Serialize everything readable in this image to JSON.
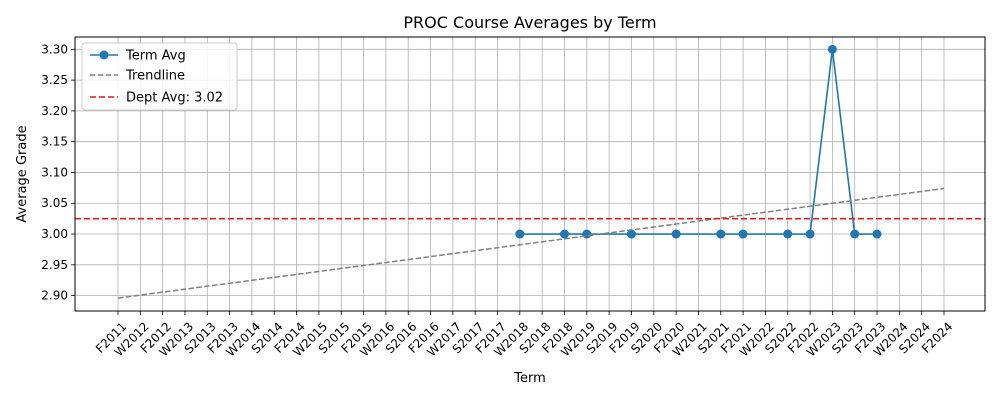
{
  "chart_data": {
    "type": "line",
    "title": "PROC Course Averages by Term",
    "xlabel": "Term",
    "ylabel": "Average Grade",
    "categories": [
      "F2011",
      "W2012",
      "F2012",
      "W2013",
      "S2013",
      "F2013",
      "W2014",
      "S2014",
      "F2014",
      "W2015",
      "S2015",
      "F2015",
      "W2016",
      "S2016",
      "F2016",
      "W2017",
      "S2017",
      "F2017",
      "W2018",
      "S2018",
      "F2018",
      "W2019",
      "S2019",
      "F2019",
      "S2020",
      "F2020",
      "W2021",
      "S2021",
      "F2021",
      "W2022",
      "S2022",
      "F2022",
      "W2023",
      "S2023",
      "F2023",
      "W2024",
      "S2024",
      "F2024"
    ],
    "ylim": [
      2.875,
      3.32
    ],
    "yticks": [
      "2.90",
      "2.95",
      "3.00",
      "3.05",
      "3.10",
      "3.15",
      "3.20",
      "3.25",
      "3.30"
    ],
    "grid": true,
    "legend_position": "top-left",
    "series": [
      {
        "name": "Term Avg",
        "color": "#1f77b4",
        "style": "line-markers",
        "points": [
          {
            "x": "W2018",
            "y": 3.0
          },
          {
            "x": "F2018",
            "y": 3.0
          },
          {
            "x": "W2019",
            "y": 3.0
          },
          {
            "x": "F2019",
            "y": 3.0
          },
          {
            "x": "F2020",
            "y": 3.0
          },
          {
            "x": "S2021",
            "y": 3.0
          },
          {
            "x": "F2021",
            "y": 3.0
          },
          {
            "x": "S2022",
            "y": 3.0
          },
          {
            "x": "F2022",
            "y": 3.0
          },
          {
            "x": "W2023",
            "y": 3.3
          },
          {
            "x": "S2023",
            "y": 3.0
          },
          {
            "x": "F2023",
            "y": 3.0
          }
        ]
      },
      {
        "name": "Trendline",
        "color": "#808080",
        "style": "dashed",
        "points": [
          {
            "x": "F2011",
            "y": 2.896
          },
          {
            "x": "F2024",
            "y": 3.074
          }
        ]
      },
      {
        "name": "Dept Avg: 3.02",
        "color": "#e41a1c",
        "style": "dashed-horizontal",
        "y": 3.025
      }
    ]
  }
}
